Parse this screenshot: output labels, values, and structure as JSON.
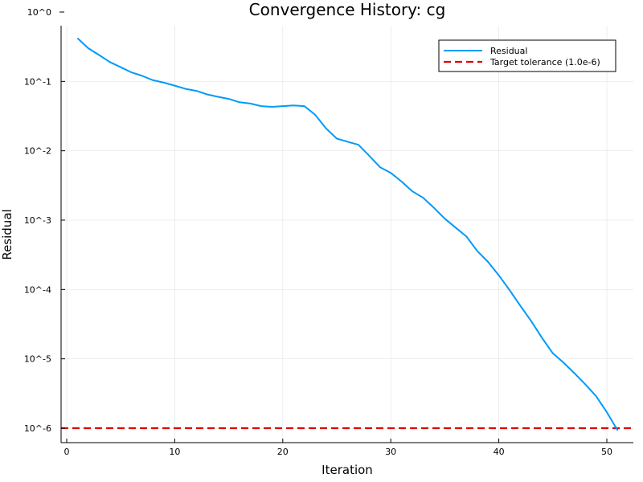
{
  "chart_data": {
    "type": "line",
    "title": "Convergence History: cg",
    "xlabel": "Iteration",
    "ylabel": "Residual",
    "xlim": [
      0,
      52
    ],
    "ylim": [
      1e-06,
      1
    ],
    "yscale": "log",
    "x_ticks": [
      0,
      10,
      20,
      30,
      40,
      50
    ],
    "x_tick_labels": [
      "0",
      "10",
      "20",
      "30",
      "40",
      "50"
    ],
    "y_ticks": [
      1,
      0.1,
      0.01,
      0.001,
      0.0001,
      1e-05,
      1e-06
    ],
    "y_tick_labels": [
      "10^0",
      "10^-1",
      "10^-2",
      "10^-3",
      "10^-4",
      "10^-5",
      "10^-6"
    ],
    "grid": true,
    "legend_position": "top-right",
    "colors": {
      "residual": "#009af9",
      "tolerance": "#e00000"
    },
    "series": [
      {
        "name": "Residual",
        "x": [
          1,
          2,
          3,
          4,
          5,
          6,
          7,
          8,
          9,
          10,
          11,
          12,
          13,
          14,
          15,
          16,
          17,
          18,
          19,
          20,
          21,
          22,
          23,
          24,
          25,
          26,
          27,
          28,
          29,
          30,
          31,
          32,
          33,
          34,
          35,
          36,
          37,
          38,
          39,
          40,
          41,
          42,
          43,
          44,
          45,
          46,
          47,
          48,
          49,
          50,
          51
        ],
        "values": [
          0.42,
          0.3,
          0.24,
          0.19,
          0.16,
          0.135,
          0.12,
          0.104,
          0.096,
          0.087,
          0.078,
          0.073,
          0.065,
          0.06,
          0.056,
          0.05,
          0.048,
          0.044,
          0.043,
          0.044,
          0.045,
          0.044,
          0.033,
          0.021,
          0.015,
          0.0135,
          0.0122,
          0.0085,
          0.0058,
          0.0048,
          0.0036,
          0.0026,
          0.0021,
          0.0015,
          0.00105,
          0.00078,
          0.00058,
          0.00036,
          0.00025,
          0.00016,
          9.8e-05,
          5.8e-05,
          3.5e-05,
          2e-05,
          1.2e-05,
          8.8e-06,
          6.2e-06,
          4.3e-06,
          2.9e-06,
          1.7e-06,
          9.3e-07
        ]
      },
      {
        "name": "Target tolerance (1.0e-6)",
        "type": "hline",
        "y": 1e-06
      }
    ]
  }
}
